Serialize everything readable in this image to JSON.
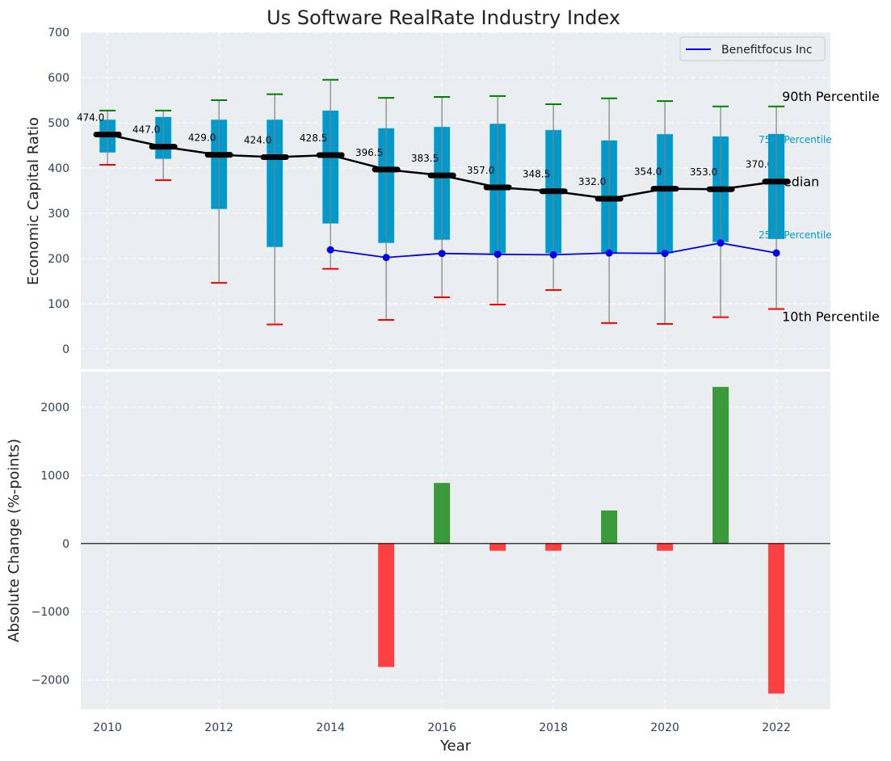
{
  "chart_data": [
    {
      "type": "box",
      "title": "Us Software RealRate Industry Index",
      "xlabel": "",
      "ylabel": "Economic Capital Ratio",
      "ylim": [
        -45,
        700
      ],
      "xlim": [
        2009.52,
        2022.97
      ],
      "yticks": [
        0,
        100,
        200,
        300,
        400,
        500,
        600,
        700
      ],
      "grid": true,
      "legend": {
        "placement": "top-right",
        "entries": [
          {
            "label": "Benefitfocus Inc",
            "color": "#0000ee"
          }
        ]
      },
      "colors": {
        "box": "#0099cc",
        "median": "#000000",
        "p90": "#008000",
        "p10": "#ff0000",
        "whisker": "#808080",
        "company": "#0000ee",
        "background": "#eaeef0"
      },
      "years": [
        2010,
        2011,
        2012,
        2013,
        2014,
        2015,
        2016,
        2017,
        2018,
        2019,
        2020,
        2021,
        2022
      ],
      "p10": [
        407,
        373,
        146,
        54,
        177,
        64,
        114,
        98,
        130,
        57,
        55,
        70,
        88
      ],
      "p25": [
        434,
        420,
        309,
        225,
        277,
        234,
        241,
        211,
        211,
        212,
        211,
        236,
        243
      ],
      "median": [
        474.0,
        447.0,
        429.0,
        424.0,
        428.5,
        396.5,
        383.5,
        357.0,
        348.5,
        332.0,
        354.0,
        353.0,
        370.0
      ],
      "p75": [
        507,
        513,
        507,
        507,
        527,
        488,
        491,
        498,
        484,
        461,
        475,
        470,
        475
      ],
      "p90": [
        527,
        527,
        550,
        563,
        595,
        555,
        557,
        559,
        541,
        554,
        548,
        536,
        536
      ],
      "median_labels": [
        "474.0",
        "447.0",
        "429.0",
        "424.0",
        "428.5",
        "396.5",
        "383.5",
        "357.0",
        "348.5",
        "332.0",
        "354.0",
        "353.0",
        "370.0"
      ],
      "company": {
        "name": "Benefitfocus Inc",
        "years": [
          2014,
          2015,
          2016,
          2017,
          2018,
          2019,
          2020,
          2021,
          2022
        ],
        "values": [
          219,
          202,
          211,
          209,
          208,
          212,
          211,
          234,
          212
        ]
      },
      "annotations": {
        "p90": "90th Percentile",
        "p75": "75th Percentile",
        "median": "Median",
        "p25": "25th Percentile",
        "p10": "10th Percentile"
      }
    },
    {
      "type": "bar",
      "xlabel": "Year",
      "ylabel": "Absolute Change (%-points)",
      "ylim": [
        -2430,
        2520
      ],
      "yticks": [
        -2000,
        -1000,
        0,
        1000,
        2000
      ],
      "ytick_labels": [
        "−2000",
        "−1000",
        "0",
        "1000",
        "2000"
      ],
      "xticks": [
        2010,
        2012,
        2014,
        2016,
        2018,
        2020,
        2022
      ],
      "grid": true,
      "colors": {
        "positive": "#3a9a3a",
        "negative": "#ff4040"
      },
      "categories": [
        2015,
        2016,
        2017,
        2018,
        2019,
        2020,
        2021,
        2022
      ],
      "values": [
        -1810,
        888,
        -106,
        -106,
        485,
        -106,
        2296,
        -2200
      ]
    }
  ]
}
